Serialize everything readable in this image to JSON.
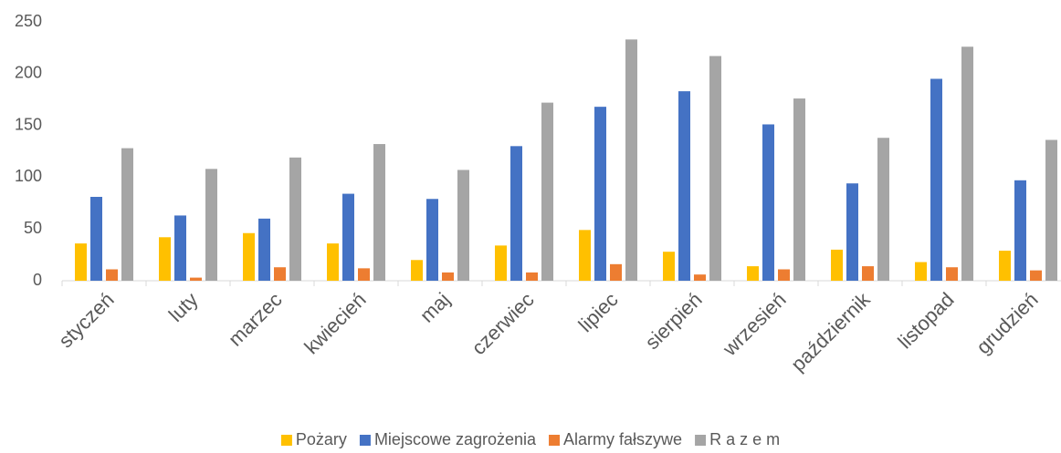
{
  "chart_data": {
    "type": "bar",
    "categories": [
      "styczeń",
      "luty",
      "marzec",
      "kwiecień",
      "maj",
      "czerwiec",
      "lipiec",
      "sierpień",
      "wrzesień",
      "październik",
      "listopad",
      "grudzień"
    ],
    "series": [
      {
        "name": "Pożary",
        "color": "#FFC000",
        "values": [
          36,
          42,
          46,
          36,
          20,
          34,
          49,
          28,
          14,
          30,
          18,
          29
        ]
      },
      {
        "name": "Miejscowe zagrożenia",
        "color": "#4472C4",
        "values": [
          81,
          63,
          60,
          84,
          79,
          130,
          168,
          183,
          151,
          94,
          195,
          97
        ]
      },
      {
        "name": "Alarmy fałszywe",
        "color": "#ED7D31",
        "values": [
          11,
          3,
          13,
          12,
          8,
          8,
          16,
          6,
          11,
          14,
          13,
          10
        ]
      },
      {
        "name": "R a z e m",
        "color": "#A5A5A5",
        "values": [
          128,
          108,
          119,
          132,
          107,
          172,
          233,
          217,
          176,
          138,
          226,
          136
        ]
      }
    ],
    "ylim": [
      0,
      250
    ],
    "yticks": [
      0,
      50,
      100,
      150,
      200,
      250
    ],
    "grid": false,
    "legend": "bottom"
  }
}
